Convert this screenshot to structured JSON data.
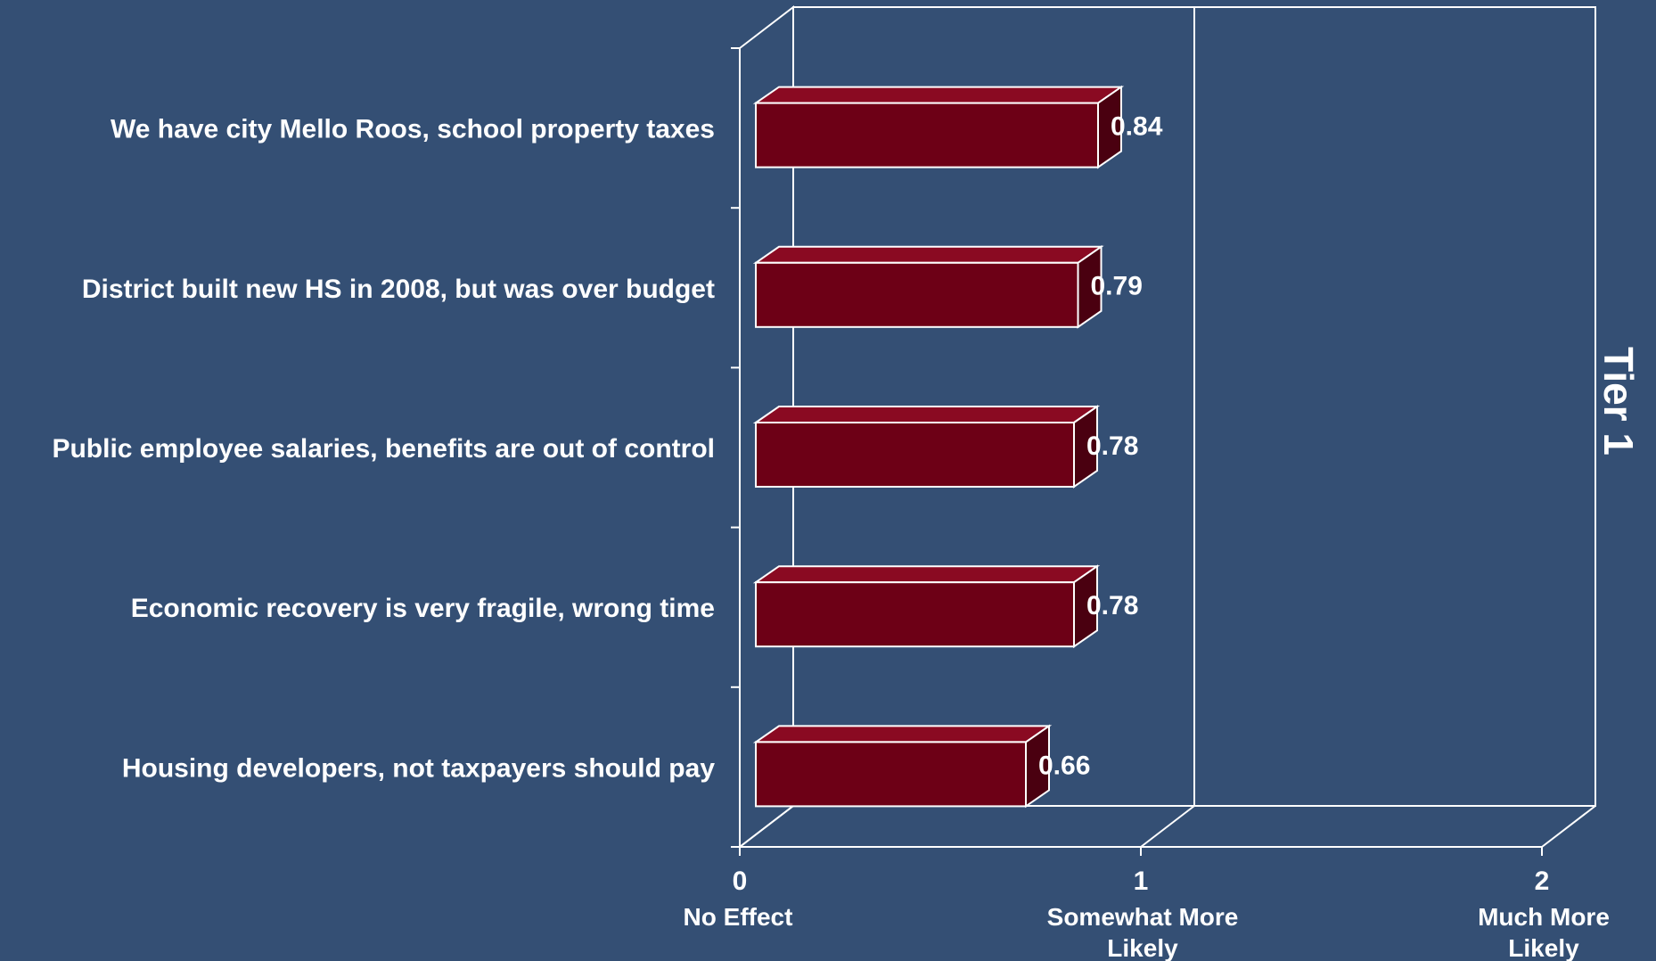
{
  "chart_data": {
    "type": "bar",
    "orientation": "horizontal",
    "categories": [
      "We have city Mello Roos, school property taxes",
      "District built new HS in 2008, but was over budget",
      "Public employee salaries, benefits are out of control",
      "Economic recovery is very fragile, wrong time",
      "Housing developers, not taxpayers should pay"
    ],
    "values": [
      0.84,
      0.79,
      0.78,
      0.78,
      0.66
    ],
    "value_labels": [
      "0.84",
      "0.79",
      "0.78",
      "0.78",
      "0.66"
    ],
    "xlim": [
      0,
      2
    ],
    "x_ticks": [
      {
        "value": 0,
        "label": "0",
        "desc": [
          "No Effect"
        ]
      },
      {
        "value": 1,
        "label": "1",
        "desc": [
          "Somewhat More",
          "Likely"
        ]
      },
      {
        "value": 2,
        "label": "2",
        "desc": [
          "Much More",
          "Likely"
        ]
      }
    ],
    "side_label": "Tier 1",
    "grid": true,
    "style_3d": true
  },
  "colors": {
    "background": "#344f74",
    "bar_front": "#6d0016",
    "bar_top": "#8a0a22",
    "bar_side": "#4a0010",
    "line": "#ffffff"
  }
}
